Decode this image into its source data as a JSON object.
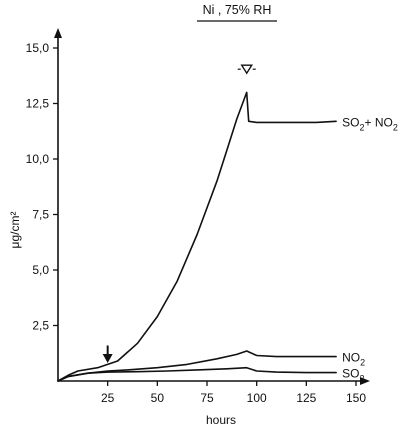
{
  "chart_data": {
    "type": "line",
    "title": "Ni , 75% RH",
    "xlabel": "hours",
    "ylabel": "μg/cm²",
    "xlim": [
      0,
      150
    ],
    "ylim": [
      0,
      15.0
    ],
    "xticks": [
      25,
      50,
      75,
      100,
      125,
      150
    ],
    "xtick_labels": [
      "25",
      "50",
      "75",
      "100",
      "125",
      "150"
    ],
    "yticks": [
      2.5,
      5.0,
      7.5,
      10.0,
      12.5,
      15.0
    ],
    "ytick_labels": [
      "2,5",
      "5,0",
      "7,5",
      "10,0",
      "12,5",
      "15,0"
    ],
    "grid": false,
    "series": [
      {
        "name": "SO2+ NO2",
        "label_base": "SO",
        "label_parts": [
          "2",
          "+ NO",
          "2"
        ],
        "x": [
          0,
          5,
          10,
          20,
          30,
          40,
          50,
          60,
          70,
          80,
          85,
          90,
          95,
          96,
          100,
          110,
          120,
          130,
          140
        ],
        "y": [
          0,
          0.25,
          0.45,
          0.6,
          0.9,
          1.7,
          2.9,
          4.5,
          6.6,
          9.0,
          10.4,
          11.8,
          13.0,
          11.7,
          11.65,
          11.65,
          11.65,
          11.65,
          11.7
        ]
      },
      {
        "name": "NO2",
        "label_base": "NO",
        "label_parts": [
          "2"
        ],
        "x": [
          0,
          5,
          15,
          25,
          35,
          50,
          65,
          80,
          90,
          95,
          100,
          110,
          125,
          140
        ],
        "y": [
          0,
          0.2,
          0.35,
          0.45,
          0.5,
          0.6,
          0.75,
          1.0,
          1.2,
          1.35,
          1.15,
          1.1,
          1.1,
          1.1
        ]
      },
      {
        "name": "SO2",
        "label_base": "SO",
        "label_parts": [
          "2"
        ],
        "x": [
          0,
          5,
          15,
          25,
          40,
          55,
          70,
          85,
          95,
          100,
          110,
          125,
          140
        ],
        "y": [
          0,
          0.2,
          0.35,
          0.4,
          0.42,
          0.45,
          0.5,
          0.55,
          0.6,
          0.45,
          0.4,
          0.38,
          0.38
        ]
      }
    ],
    "annotations": [
      {
        "kind": "filled-arrow-down",
        "x": 25
      },
      {
        "kind": "open-arrow-down",
        "x": 95
      }
    ]
  }
}
